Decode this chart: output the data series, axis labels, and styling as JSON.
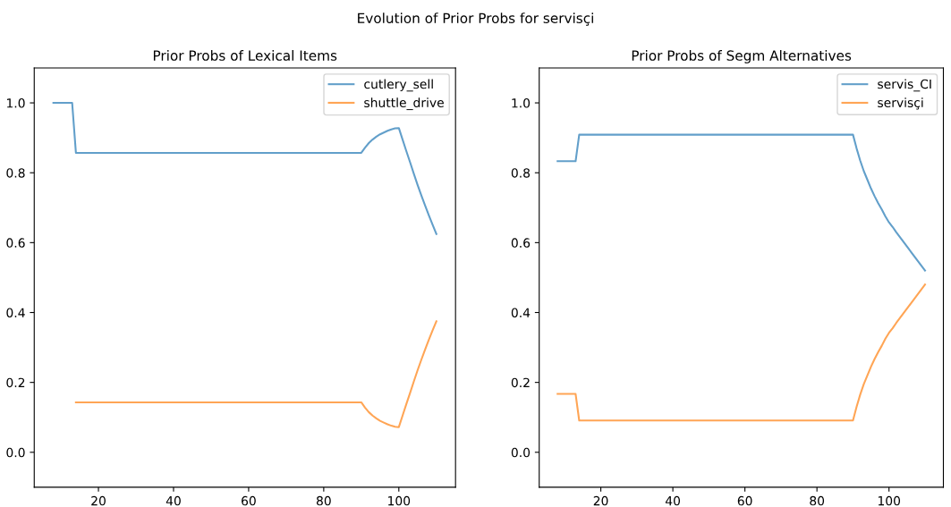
{
  "chart_data": [
    {
      "type": "line",
      "title": "Prior Probs of Lexical Items",
      "annotations": [
        "Evolution of Prior Probs for servisçi"
      ],
      "xlim": [
        2.9,
        115.1
      ],
      "xticks": [
        20,
        40,
        60,
        80,
        100
      ],
      "ylim": [
        -0.1,
        1.1
      ],
      "yticks": [
        {
          "value": 0.0,
          "label": "0.0"
        },
        {
          "value": 0.2,
          "label": "0.2"
        },
        {
          "value": 0.4,
          "label": "0.4"
        },
        {
          "value": 0.6,
          "label": "0.6"
        },
        {
          "value": 0.8,
          "label": "0.8"
        },
        {
          "value": 1.0,
          "label": "1.0"
        }
      ],
      "grid": false,
      "legend": "top right",
      "series": [
        {
          "name": "cutlery_sell",
          "color": "#629fca",
          "x": [
            8,
            13,
            14,
            90,
            91,
            92,
            93,
            94,
            95,
            96,
            97,
            98,
            99,
            100,
            101,
            102,
            103,
            104,
            105,
            106,
            107,
            108,
            109,
            110
          ],
          "values": [
            1.0,
            1.0,
            0.857,
            0.857,
            0.872,
            0.885,
            0.895,
            0.903,
            0.91,
            0.915,
            0.92,
            0.924,
            0.927,
            0.928,
            0.895,
            0.862,
            0.83,
            0.797,
            0.765,
            0.735,
            0.706,
            0.678,
            0.651,
            0.625
          ]
        },
        {
          "name": "shuttle_drive",
          "color": "#ffa555",
          "x": [
            14,
            90,
            91,
            92,
            93,
            94,
            95,
            96,
            97,
            98,
            99,
            100,
            101,
            102,
            103,
            104,
            105,
            106,
            107,
            108,
            109,
            110
          ],
          "values": [
            0.143,
            0.143,
            0.128,
            0.115,
            0.105,
            0.097,
            0.09,
            0.085,
            0.08,
            0.076,
            0.073,
            0.072,
            0.105,
            0.138,
            0.17,
            0.203,
            0.235,
            0.265,
            0.294,
            0.322,
            0.349,
            0.375
          ]
        }
      ]
    },
    {
      "type": "line",
      "title": "Prior Probs of Segm Alternatives",
      "xlim": [
        2.9,
        115.1
      ],
      "xticks": [
        20,
        40,
        60,
        80,
        100
      ],
      "ylim": [
        -0.1,
        1.1
      ],
      "yticks": [
        {
          "value": 0.0,
          "label": "0.0"
        },
        {
          "value": 0.2,
          "label": "0.2"
        },
        {
          "value": 0.4,
          "label": "0.4"
        },
        {
          "value": 0.6,
          "label": "0.6"
        },
        {
          "value": 0.8,
          "label": "0.8"
        },
        {
          "value": 1.0,
          "label": "1.0"
        }
      ],
      "grid": false,
      "legend": "top right",
      "series": [
        {
          "name": "servis_CI",
          "color": "#629fca",
          "x": [
            8,
            13,
            14,
            90,
            91,
            92,
            93,
            94,
            95,
            96,
            97,
            98,
            99,
            100,
            101,
            102,
            110
          ],
          "values": [
            0.833,
            0.833,
            0.909,
            0.909,
            0.87,
            0.835,
            0.805,
            0.78,
            0.755,
            0.733,
            0.713,
            0.695,
            0.675,
            0.658,
            0.645,
            0.63,
            0.52
          ]
        },
        {
          "name": "servisçi",
          "color": "#ffa555",
          "x": [
            8,
            13,
            14,
            90,
            91,
            92,
            93,
            94,
            95,
            96,
            97,
            98,
            99,
            100,
            101,
            102,
            110
          ],
          "values": [
            0.167,
            0.167,
            0.091,
            0.091,
            0.13,
            0.165,
            0.195,
            0.22,
            0.245,
            0.267,
            0.287,
            0.305,
            0.325,
            0.342,
            0.355,
            0.37,
            0.48
          ]
        }
      ]
    }
  ]
}
